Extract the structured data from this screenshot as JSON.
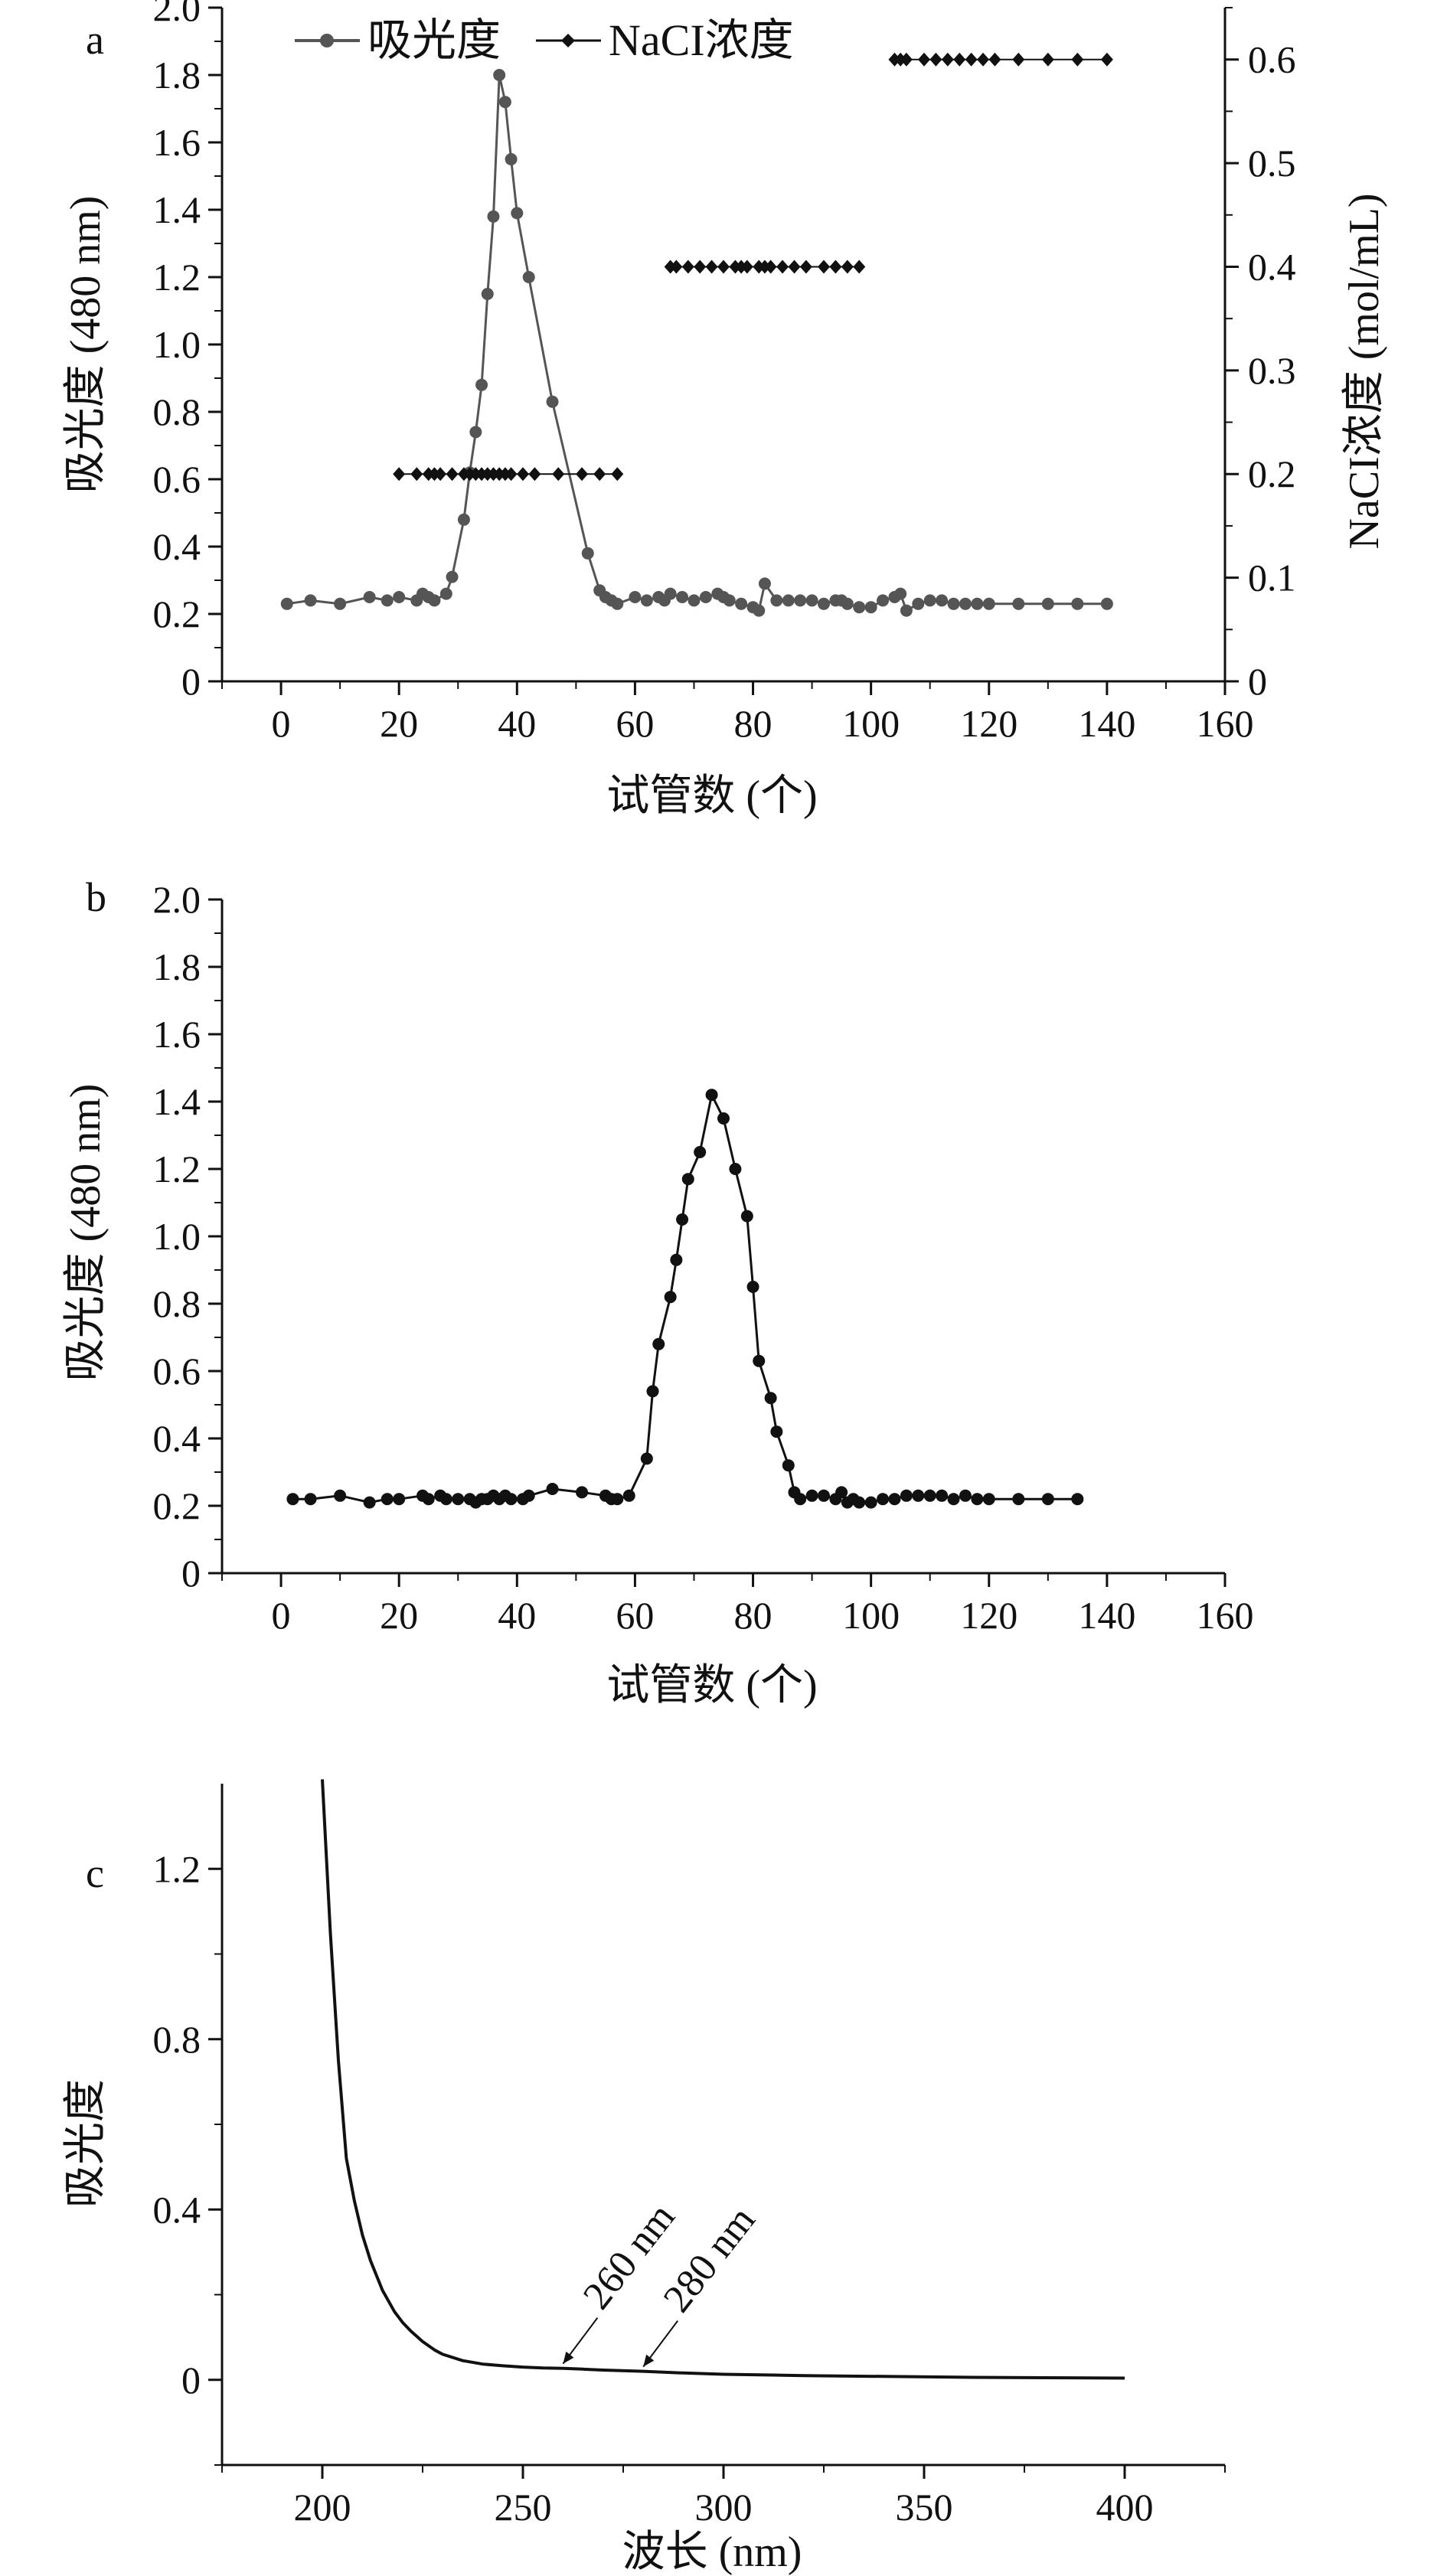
{
  "chart_data": [
    {
      "panel": "a",
      "type": "line",
      "xlabel": "试管数 (个)",
      "ylabel": "吸光度 (480 nm)",
      "y2label": "NaCI浓度 (mol/mL)",
      "xlim": [
        -10,
        160
      ],
      "ylim": [
        0,
        2.0
      ],
      "y2lim": [
        0,
        0.65
      ],
      "xticks": [
        0,
        20,
        40,
        60,
        80,
        100,
        120,
        140,
        160
      ],
      "yticks": [
        0,
        0.2,
        0.4,
        0.6,
        0.8,
        1.0,
        1.2,
        1.4,
        1.6,
        1.8,
        2.0
      ],
      "y2ticks": [
        0,
        0.1,
        0.2,
        0.3,
        0.4,
        0.5,
        0.6
      ],
      "legend": {
        "position": "top-left"
      },
      "series": [
        {
          "name": "吸光度",
          "axis": "left",
          "color": "#555555",
          "marker": "circle",
          "x": [
            1,
            5,
            10,
            15,
            18,
            20,
            23,
            24,
            25,
            26,
            28,
            29,
            31,
            32,
            33,
            34,
            35,
            36,
            37,
            38,
            39,
            40,
            42,
            46,
            52,
            54,
            55,
            56,
            57,
            60,
            62,
            64,
            65,
            66,
            68,
            70,
            72,
            74,
            75,
            76,
            78,
            80,
            81,
            82,
            84,
            86,
            88,
            90,
            92,
            94,
            95,
            96,
            98,
            100,
            102,
            104,
            105,
            106,
            108,
            110,
            112,
            114,
            116,
            118,
            120,
            125,
            130,
            135,
            140
          ],
          "values": [
            0.23,
            0.24,
            0.23,
            0.25,
            0.24,
            0.25,
            0.24,
            0.26,
            0.25,
            0.24,
            0.26,
            0.31,
            0.48,
            0.62,
            0.74,
            0.88,
            1.15,
            1.38,
            1.8,
            1.72,
            1.55,
            1.39,
            1.2,
            0.83,
            0.38,
            0.27,
            0.25,
            0.24,
            0.23,
            0.25,
            0.24,
            0.25,
            0.24,
            0.26,
            0.25,
            0.24,
            0.25,
            0.26,
            0.25,
            0.24,
            0.23,
            0.22,
            0.21,
            0.29,
            0.24,
            0.24,
            0.24,
            0.24,
            0.23,
            0.24,
            0.24,
            0.23,
            0.22,
            0.22,
            0.24,
            0.25,
            0.26,
            0.21,
            0.23,
            0.24,
            0.24,
            0.23,
            0.23,
            0.23,
            0.23,
            0.23,
            0.23,
            0.23,
            0.23
          ]
        },
        {
          "name": "NaCI浓度",
          "axis": "right",
          "color": "#111111",
          "marker": "diamond",
          "x": [
            20,
            23,
            25,
            26,
            27,
            29,
            31,
            32,
            33,
            34,
            35,
            36,
            37,
            38,
            39,
            41,
            43,
            47,
            51,
            54,
            57,
            66,
            67,
            69,
            71,
            73,
            75,
            77,
            78,
            79,
            81,
            82,
            83,
            85,
            87,
            89,
            92,
            94,
            96,
            98,
            104,
            105,
            106,
            109,
            111,
            113,
            115,
            117,
            119,
            121,
            125,
            130,
            135,
            140
          ],
          "values": [
            0.2,
            0.2,
            0.2,
            0.2,
            0.2,
            0.2,
            0.2,
            0.2,
            0.2,
            0.2,
            0.2,
            0.2,
            0.2,
            0.2,
            0.2,
            0.2,
            0.2,
            0.2,
            0.2,
            0.2,
            0.2,
            0.4,
            0.4,
            0.4,
            0.4,
            0.4,
            0.4,
            0.4,
            0.4,
            0.4,
            0.4,
            0.4,
            0.4,
            0.4,
            0.4,
            0.4,
            0.4,
            0.4,
            0.4,
            0.4,
            0.6,
            0.6,
            0.6,
            0.6,
            0.6,
            0.6,
            0.6,
            0.6,
            0.6,
            0.6,
            0.6,
            0.6,
            0.6,
            0.6
          ]
        }
      ]
    },
    {
      "panel": "b",
      "type": "line",
      "xlabel": "试管数 (个)",
      "ylabel": "吸光度 (480 nm)",
      "xlim": [
        -10,
        160
      ],
      "ylim": [
        0,
        2.0
      ],
      "xticks": [
        0,
        20,
        40,
        60,
        80,
        100,
        120,
        140,
        160
      ],
      "yticks": [
        0,
        0.2,
        0.4,
        0.6,
        0.8,
        1.0,
        1.2,
        1.4,
        1.6,
        1.8,
        2.0
      ],
      "series": [
        {
          "color": "#111111",
          "marker": "circle",
          "x": [
            2,
            5,
            10,
            15,
            18,
            20,
            24,
            25,
            27,
            28,
            30,
            32,
            33,
            34,
            35,
            36,
            37,
            38,
            39,
            41,
            42,
            46,
            51,
            55,
            56,
            57,
            59,
            62,
            63,
            64,
            66,
            67,
            68,
            69,
            71,
            73,
            75,
            77,
            79,
            80,
            81,
            83,
            84,
            86,
            87,
            88,
            90,
            92,
            94,
            95,
            96,
            97,
            98,
            100,
            102,
            104,
            106,
            108,
            110,
            112,
            114,
            116,
            118,
            120,
            125,
            130,
            135
          ],
          "values": [
            0.22,
            0.22,
            0.23,
            0.21,
            0.22,
            0.22,
            0.23,
            0.22,
            0.23,
            0.22,
            0.22,
            0.22,
            0.21,
            0.22,
            0.22,
            0.23,
            0.22,
            0.23,
            0.22,
            0.22,
            0.23,
            0.25,
            0.24,
            0.23,
            0.22,
            0.22,
            0.23,
            0.34,
            0.54,
            0.68,
            0.82,
            0.93,
            1.05,
            1.17,
            1.25,
            1.42,
            1.35,
            1.2,
            1.06,
            0.85,
            0.63,
            0.52,
            0.42,
            0.32,
            0.24,
            0.22,
            0.23,
            0.23,
            0.22,
            0.24,
            0.21,
            0.22,
            0.21,
            0.21,
            0.22,
            0.22,
            0.23,
            0.23,
            0.23,
            0.23,
            0.22,
            0.23,
            0.22,
            0.22,
            0.22,
            0.22,
            0.22
          ]
        }
      ]
    },
    {
      "panel": "c",
      "type": "line",
      "xlabel": "波长 (nm)",
      "ylabel": "吸光度",
      "xlim": [
        175,
        425
      ],
      "ylim": [
        -0.2,
        1.4
      ],
      "xticks": [
        200,
        250,
        300,
        350,
        400
      ],
      "yticks": [
        0,
        0.4,
        0.8,
        1.2
      ],
      "series": [
        {
          "color": "#111111",
          "marker": "none",
          "x": [
            200,
            202,
            204,
            206,
            208,
            210,
            212,
            215,
            218,
            220,
            222,
            225,
            228,
            230,
            235,
            240,
            245,
            250,
            255,
            260,
            265,
            270,
            280,
            290,
            300,
            320,
            340,
            360,
            380,
            400
          ],
          "values": [
            1.41,
            1.05,
            0.75,
            0.52,
            0.42,
            0.34,
            0.28,
            0.21,
            0.16,
            0.135,
            0.115,
            0.09,
            0.07,
            0.06,
            0.045,
            0.037,
            0.033,
            0.03,
            0.028,
            0.027,
            0.025,
            0.023,
            0.02,
            0.016,
            0.013,
            0.01,
            0.008,
            0.006,
            0.005,
            0.004
          ]
        }
      ],
      "annotations": [
        {
          "text": "260 nm",
          "x": 260,
          "y": 0.027
        },
        {
          "text": "280 nm",
          "x": 280,
          "y": 0.02
        }
      ]
    }
  ]
}
